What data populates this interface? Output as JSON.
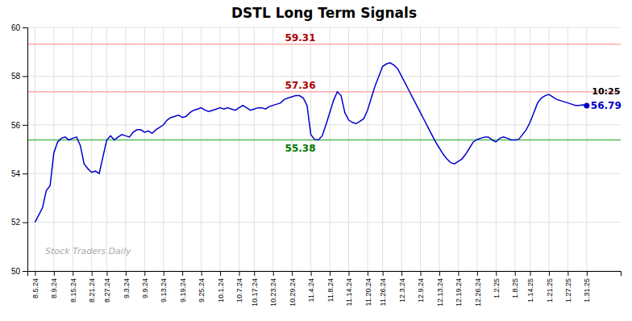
{
  "chart_data": {
    "type": "line",
    "title": "DSTL Long Term Signals",
    "categories": [
      "8.5.24",
      null,
      null,
      null,
      null,
      "8.9.24",
      null,
      null,
      null,
      null,
      "8.15.24",
      null,
      null,
      null,
      null,
      "8.21.24",
      null,
      null,
      null,
      "8.27.24",
      null,
      null,
      null,
      null,
      "9.3.24",
      null,
      null,
      null,
      null,
      "9.9.24",
      null,
      null,
      null,
      null,
      "9.13.24",
      null,
      null,
      null,
      null,
      "9.19.24",
      null,
      null,
      null,
      null,
      "9.25.24",
      null,
      null,
      null,
      null,
      "10.1.24",
      null,
      null,
      null,
      null,
      "10.7.24",
      null,
      null,
      null,
      "10.17.24",
      null,
      null,
      null,
      null,
      "10.23.24",
      null,
      null,
      null,
      null,
      "10.29.24",
      null,
      null,
      null,
      null,
      "11.4.24",
      null,
      null,
      null,
      null,
      "11.8.24",
      null,
      null,
      null,
      null,
      "11.14.24",
      null,
      null,
      null,
      null,
      "11.20.24",
      null,
      null,
      null,
      "11.26.24",
      null,
      null,
      null,
      null,
      "12.3.24",
      null,
      null,
      null,
      null,
      "12.9.24",
      null,
      null,
      null,
      null,
      "12.13.24",
      null,
      null,
      null,
      null,
      "12.19.24",
      null,
      null,
      null,
      null,
      "12.26.24",
      null,
      null,
      null,
      null,
      "1.2.25",
      null,
      null,
      null,
      null,
      "1.8.25",
      null,
      null,
      null,
      "1.14.25",
      null,
      null,
      null,
      null,
      "1.21.25",
      null,
      null,
      null,
      null,
      "1.27.25",
      null,
      null,
      null,
      null,
      "1.31.25"
    ],
    "values": [
      52.0,
      52.3,
      52.6,
      53.3,
      53.5,
      54.85,
      55.3,
      55.45,
      55.5,
      55.38,
      55.45,
      55.5,
      55.15,
      54.4,
      54.2,
      54.05,
      54.1,
      54.0,
      54.7,
      55.38,
      55.55,
      55.38,
      55.5,
      55.6,
      55.55,
      55.5,
      55.7,
      55.8,
      55.8,
      55.7,
      55.75,
      55.65,
      55.8,
      55.9,
      56.0,
      56.2,
      56.3,
      56.35,
      56.4,
      56.3,
      56.35,
      56.5,
      56.6,
      56.65,
      56.7,
      56.6,
      56.55,
      56.6,
      56.65,
      56.7,
      56.65,
      56.7,
      56.65,
      56.6,
      56.7,
      56.8,
      56.7,
      56.6,
      56.65,
      56.7,
      56.7,
      56.65,
      56.75,
      56.8,
      56.85,
      56.9,
      57.05,
      57.1,
      57.15,
      57.2,
      57.2,
      57.1,
      56.8,
      55.6,
      55.4,
      55.38,
      55.55,
      56.0,
      56.5,
      57.0,
      57.36,
      57.2,
      56.5,
      56.2,
      56.1,
      56.05,
      56.15,
      56.25,
      56.6,
      57.1,
      57.6,
      58.0,
      58.4,
      58.5,
      58.55,
      58.45,
      58.3,
      58.0,
      57.7,
      57.4,
      57.1,
      56.8,
      56.5,
      56.2,
      55.9,
      55.6,
      55.3,
      55.05,
      54.8,
      54.6,
      54.45,
      54.4,
      54.5,
      54.6,
      54.8,
      55.05,
      55.3,
      55.4,
      55.45,
      55.5,
      55.5,
      55.38,
      55.3,
      55.45,
      55.5,
      55.45,
      55.38,
      55.38,
      55.4,
      55.6,
      55.8,
      56.1,
      56.5,
      56.9,
      57.1,
      57.2,
      57.25,
      57.15,
      57.05,
      57.0,
      56.95,
      56.9,
      56.85,
      56.8,
      56.8,
      56.82,
      56.79
    ],
    "color": "#0000cc",
    "ylim": [
      50,
      60
    ],
    "yticks": [
      50,
      52,
      54,
      56,
      58,
      60
    ],
    "grid": true,
    "reference_lines": [
      {
        "value": 59.31,
        "color": "#ffaaaa",
        "label": "59.31",
        "label_color": "#aa0000"
      },
      {
        "value": 57.36,
        "color": "#ffaaaa",
        "label": "57.36",
        "label_color": "#aa0000"
      },
      {
        "value": 55.38,
        "color": "#55bb55",
        "label": "55.38",
        "label_color": "#007700"
      }
    ],
    "last_point": {
      "time": "10:25",
      "label": "56.79",
      "color": "#0000cc"
    },
    "watermark": "Stock Traders Daily"
  }
}
